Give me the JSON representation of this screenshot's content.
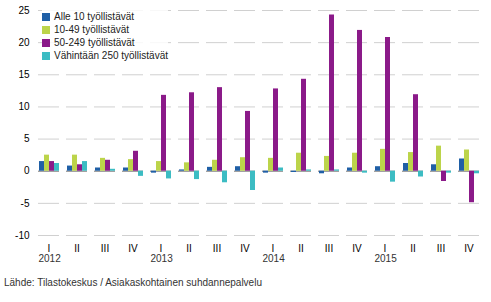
{
  "chart_data": {
    "type": "bar",
    "categories": [
      "I",
      "II",
      "III",
      "IV",
      "I",
      "II",
      "III",
      "IV",
      "I",
      "II",
      "III",
      "IV",
      "I",
      "II",
      "III",
      "IV"
    ],
    "groups": [
      {
        "label": "2012",
        "count": 4
      },
      {
        "label": "2013",
        "count": 4
      },
      {
        "label": "2014",
        "count": 4
      },
      {
        "label": "2015",
        "count": 4
      }
    ],
    "series": [
      {
        "name": "Alle 10 työllistävät",
        "color": "#1f5fa6",
        "values": [
          1.5,
          0.8,
          0.5,
          0.5,
          -0.3,
          0.2,
          0.6,
          0.7,
          -0.3,
          -0.2,
          -0.4,
          0.5,
          0.7,
          1.2,
          1.0,
          1.9
        ]
      },
      {
        "name": "10-49 työllistävät",
        "color": "#bcd44a",
        "values": [
          2.5,
          2.5,
          2.0,
          1.8,
          1.5,
          1.3,
          1.7,
          2.1,
          2.0,
          2.8,
          2.3,
          2.8,
          3.4,
          2.9,
          3.9,
          3.3
        ]
      },
      {
        "name": "50-249 työllistävät",
        "color": "#8b1a89",
        "values": [
          1.5,
          1.0,
          1.7,
          3.1,
          11.8,
          12.2,
          13.0,
          9.3,
          12.8,
          14.3,
          24.3,
          21.9,
          20.8,
          11.9,
          -1.6,
          -4.9
        ]
      },
      {
        "name": "Vähintään 250 työllistävät",
        "color": "#3cbcc3",
        "values": [
          1.2,
          1.5,
          0.3,
          -0.8,
          -1.2,
          -1.3,
          -1.8,
          -3.0,
          0.5,
          0.2,
          0.2,
          -0.3,
          -1.7,
          -0.9,
          -0.3,
          -0.4
        ]
      }
    ],
    "ylim": [
      -10,
      25
    ],
    "yticks": [
      -10,
      -5,
      0,
      5,
      10,
      15,
      20,
      25
    ],
    "grid": true,
    "legend": "top-left",
    "source": "Lähde: Tilastokeskus / Asiakaskohtainen suhdannepalvelu"
  }
}
